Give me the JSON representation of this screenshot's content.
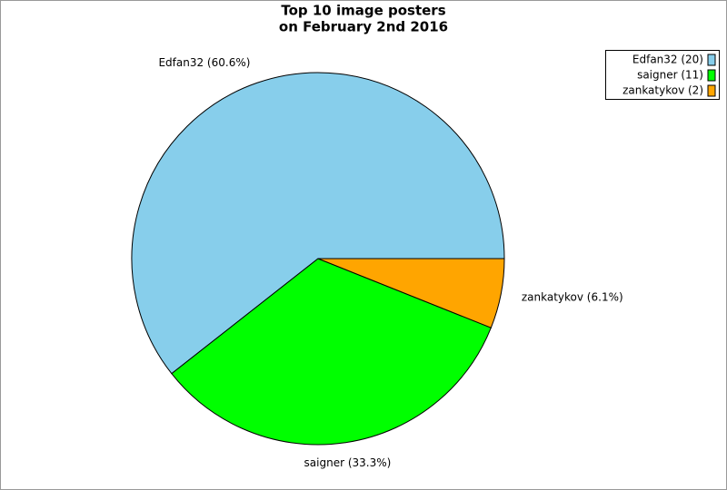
{
  "chart_data": {
    "type": "pie",
    "title": [
      "Top 10 image posters",
      "on February 2nd 2016"
    ],
    "categories": [
      "Edfan32",
      "saigner",
      "zankatykov"
    ],
    "values": [
      20,
      11,
      2
    ],
    "value_labels": [
      "Edfan32 (20)",
      "saigner (11)",
      "zankatykov (2)"
    ],
    "slice_labels": [
      "Edfan32 (60.6%)",
      "saigner (33.3%)",
      "zankatykov (6.1%)"
    ],
    "colors": [
      "#87ceeb",
      "#00ff00",
      "#ffa500"
    ],
    "legend": "top-right"
  }
}
